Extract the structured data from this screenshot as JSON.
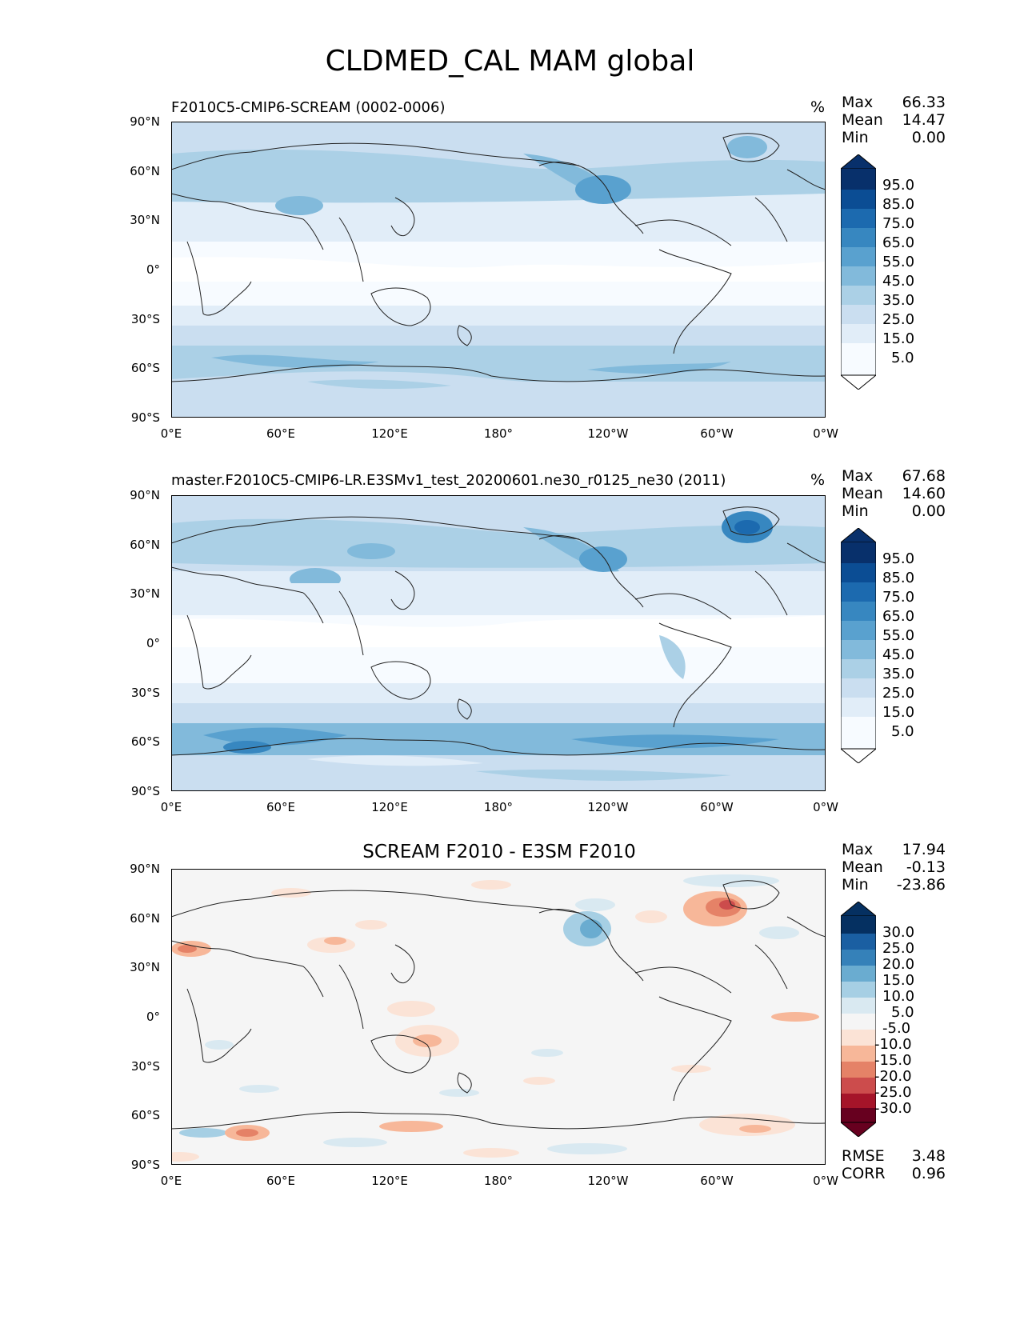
{
  "title": "CLDMED_CAL MAM global",
  "panels": [
    {
      "title": "F2010C5-CMIP6-SCREAM (0002-0006)",
      "units": "%",
      "stats": {
        "max_label": "Max",
        "max": "66.33",
        "mean_label": "Mean",
        "mean": "14.47",
        "min_label": "Min",
        "min": "0.00"
      },
      "colorbar_labels": [
        "95.0",
        "85.0",
        "75.0",
        "65.0",
        "55.0",
        "45.0",
        "35.0",
        "25.0",
        "15.0",
        "5.0"
      ]
    },
    {
      "title": "master.F2010C5-CMIP6-LR.E3SMv1_test_20200601.ne30_r0125_ne30 (2011)",
      "units": "%",
      "stats": {
        "max_label": "Max",
        "max": "67.68",
        "mean_label": "Mean",
        "mean": "14.60",
        "min_label": "Min",
        "min": "0.00"
      },
      "colorbar_labels": [
        "95.0",
        "85.0",
        "75.0",
        "65.0",
        "55.0",
        "45.0",
        "35.0",
        "25.0",
        "15.0",
        "5.0"
      ]
    },
    {
      "title": "SCREAM F2010 - E3SM F2010",
      "units": "",
      "stats": {
        "max_label": "Max",
        "max": "17.94",
        "mean_label": "Mean",
        "mean": "-0.13",
        "min_label": "Min",
        "min": "-23.86"
      },
      "colorbar_labels": [
        "30.0",
        "25.0",
        "20.0",
        "15.0",
        "10.0",
        "5.0",
        "-5.0",
        "-10.0",
        "-15.0",
        "-20.0",
        "-25.0",
        "-30.0"
      ],
      "rmse_label": "RMSE",
      "rmse": "3.48",
      "corr_label": "CORR",
      "corr": "0.96"
    }
  ],
  "axes": {
    "lat_labels": [
      "90°N",
      "60°N",
      "30°N",
      "0°",
      "30°S",
      "60°S",
      "90°S"
    ],
    "lon_labels": [
      "0°E",
      "60°E",
      "120°E",
      "180°",
      "120°W",
      "60°W",
      "0°W"
    ]
  },
  "colors": {
    "blues": [
      "#f7fbff",
      "#e1edf8",
      "#cadef0",
      "#abd0e6",
      "#82badb",
      "#59a1cf",
      "#3787c0",
      "#1c6aaf",
      "#0b4d94",
      "#08306b"
    ],
    "diverging": [
      "#67001f",
      "#a51429",
      "#cc4c4c",
      "#e58267",
      "#f7b799",
      "#fbe3d6",
      "#f5f5f5",
      "#d9e9f1",
      "#a6cfe4",
      "#6aacd0",
      "#3581b9",
      "#1a5fa2",
      "#053061"
    ]
  }
}
